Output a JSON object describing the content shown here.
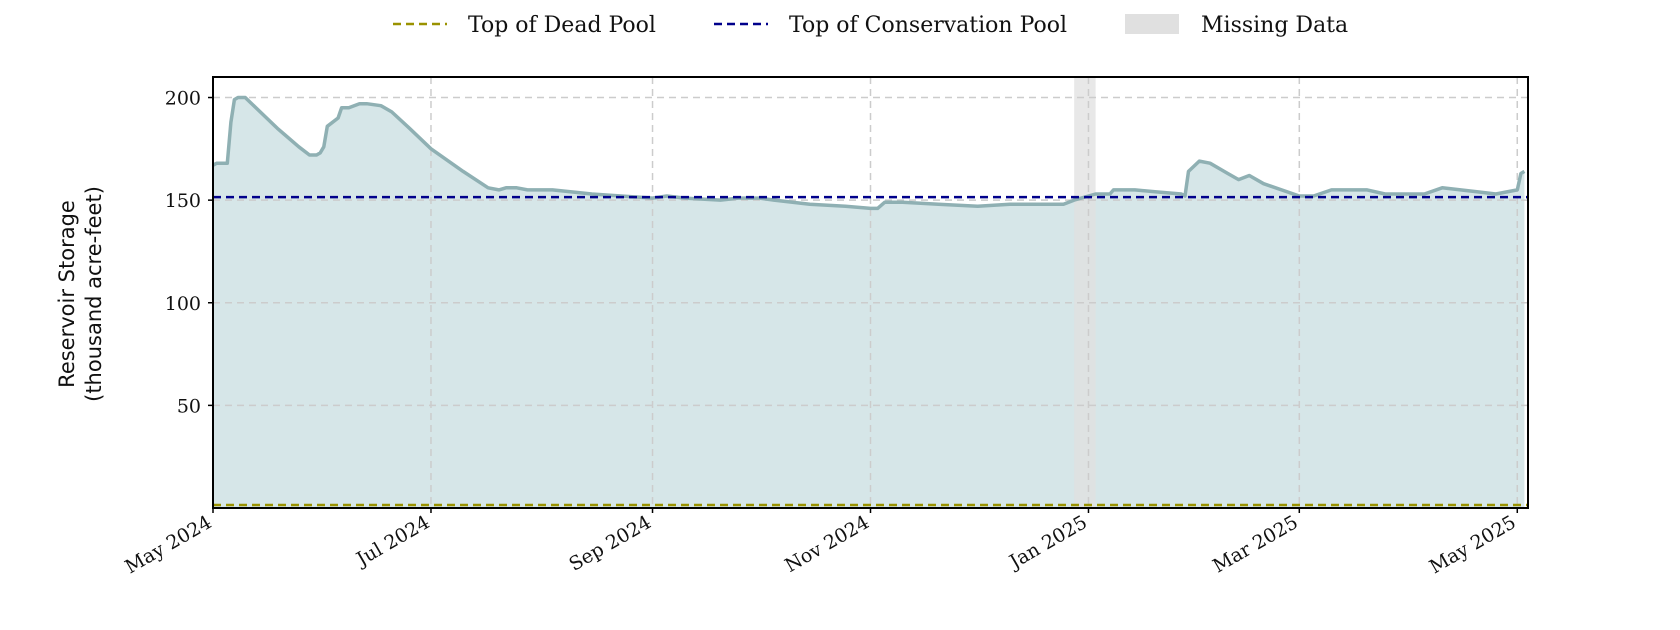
{
  "chart_data": {
    "type": "area",
    "title": "",
    "xlabel": "",
    "ylabel": [
      "Reservoir Storage",
      "(thousand acre-feet)"
    ],
    "x_range": [
      "2024-05-01",
      "2025-05-04"
    ],
    "ylim": [
      0,
      210
    ],
    "y_ticks": [
      50,
      100,
      150,
      200
    ],
    "x_ticks": [
      {
        "date": "2024-05-01",
        "label": "May 2024"
      },
      {
        "date": "2024-07-01",
        "label": "Jul 2024"
      },
      {
        "date": "2024-09-01",
        "label": "Sep 2024"
      },
      {
        "date": "2024-11-01",
        "label": "Nov 2024"
      },
      {
        "date": "2025-01-01",
        "label": "Jan 2025"
      },
      {
        "date": "2025-03-01",
        "label": "Mar 2025"
      },
      {
        "date": "2025-05-01",
        "label": "May 2025"
      }
    ],
    "grid": true,
    "legend_position": "top-center",
    "colors": {
      "storage_line": "#8fb0b3",
      "storage_fill": "#d6e6e8",
      "dead_pool": "#9a9200",
      "conservation_pool": "#00008b",
      "missing": "#e0e0e0",
      "grid": "#cccccc"
    },
    "reference_lines": [
      {
        "name": "Top of Dead Pool",
        "value": 0.5
      },
      {
        "name": "Top of Conservation Pool",
        "value": 151.5
      }
    ],
    "missing_ranges": [
      {
        "name": "Missing Data",
        "start": "2024-12-28",
        "end": "2025-01-03"
      }
    ],
    "series": [
      {
        "x": [
          "2024-05-01",
          "2024-05-02",
          "2024-05-05",
          "2024-05-06",
          "2024-05-07",
          "2024-05-08",
          "2024-05-10",
          "2024-05-13",
          "2024-05-16",
          "2024-05-19",
          "2024-05-21",
          "2024-05-25",
          "2024-05-28",
          "2024-05-30",
          "2024-05-31",
          "2024-06-01",
          "2024-06-02",
          "2024-06-05",
          "2024-06-06",
          "2024-06-08",
          "2024-06-11",
          "2024-06-13",
          "2024-06-17",
          "2024-06-20",
          "2024-06-25",
          "2024-07-01",
          "2024-07-10",
          "2024-07-17",
          "2024-07-20",
          "2024-07-22",
          "2024-07-25",
          "2024-07-28",
          "2024-08-01",
          "2024-08-04",
          "2024-08-15",
          "2024-09-01",
          "2024-09-05",
          "2024-09-10",
          "2024-09-20",
          "2024-09-25",
          "2024-10-01",
          "2024-10-05",
          "2024-10-15",
          "2024-10-25",
          "2024-11-01",
          "2024-11-03",
          "2024-11-05",
          "2024-11-10",
          "2024-11-20",
          "2024-12-01",
          "2024-12-10",
          "2024-12-25",
          "2024-12-28",
          "2025-01-03",
          "2025-01-07",
          "2025-01-08",
          "2025-01-14",
          "2025-01-20",
          "2025-01-27",
          "2025-01-28",
          "2025-01-29",
          "2025-02-01",
          "2025-02-04",
          "2025-02-07",
          "2025-02-09",
          "2025-02-12",
          "2025-02-15",
          "2025-02-19",
          "2025-03-01",
          "2025-03-05",
          "2025-03-10",
          "2025-03-15",
          "2025-03-20",
          "2025-03-25",
          "2025-04-01",
          "2025-04-05",
          "2025-04-10",
          "2025-04-20",
          "2025-04-25",
          "2025-05-01",
          "2025-05-02",
          "2025-05-03"
        ],
        "y": [
          167,
          168,
          168,
          188,
          199,
          200,
          200,
          195,
          190,
          185,
          182,
          176,
          172,
          172,
          173,
          176,
          186,
          190,
          195,
          195,
          197,
          197,
          196,
          193,
          185,
          175,
          164,
          156,
          155,
          156,
          156,
          155,
          155,
          155,
          153,
          151,
          152,
          151,
          150,
          151,
          151,
          150,
          148,
          147,
          146,
          146,
          149,
          149,
          148,
          147,
          148,
          148,
          150,
          153,
          153,
          155,
          155,
          154,
          153,
          152,
          164,
          169,
          168,
          165,
          163,
          160,
          162,
          158,
          152,
          152,
          155,
          155,
          155,
          153,
          153,
          153,
          156,
          154,
          153,
          155,
          163,
          164
        ]
      }
    ]
  }
}
